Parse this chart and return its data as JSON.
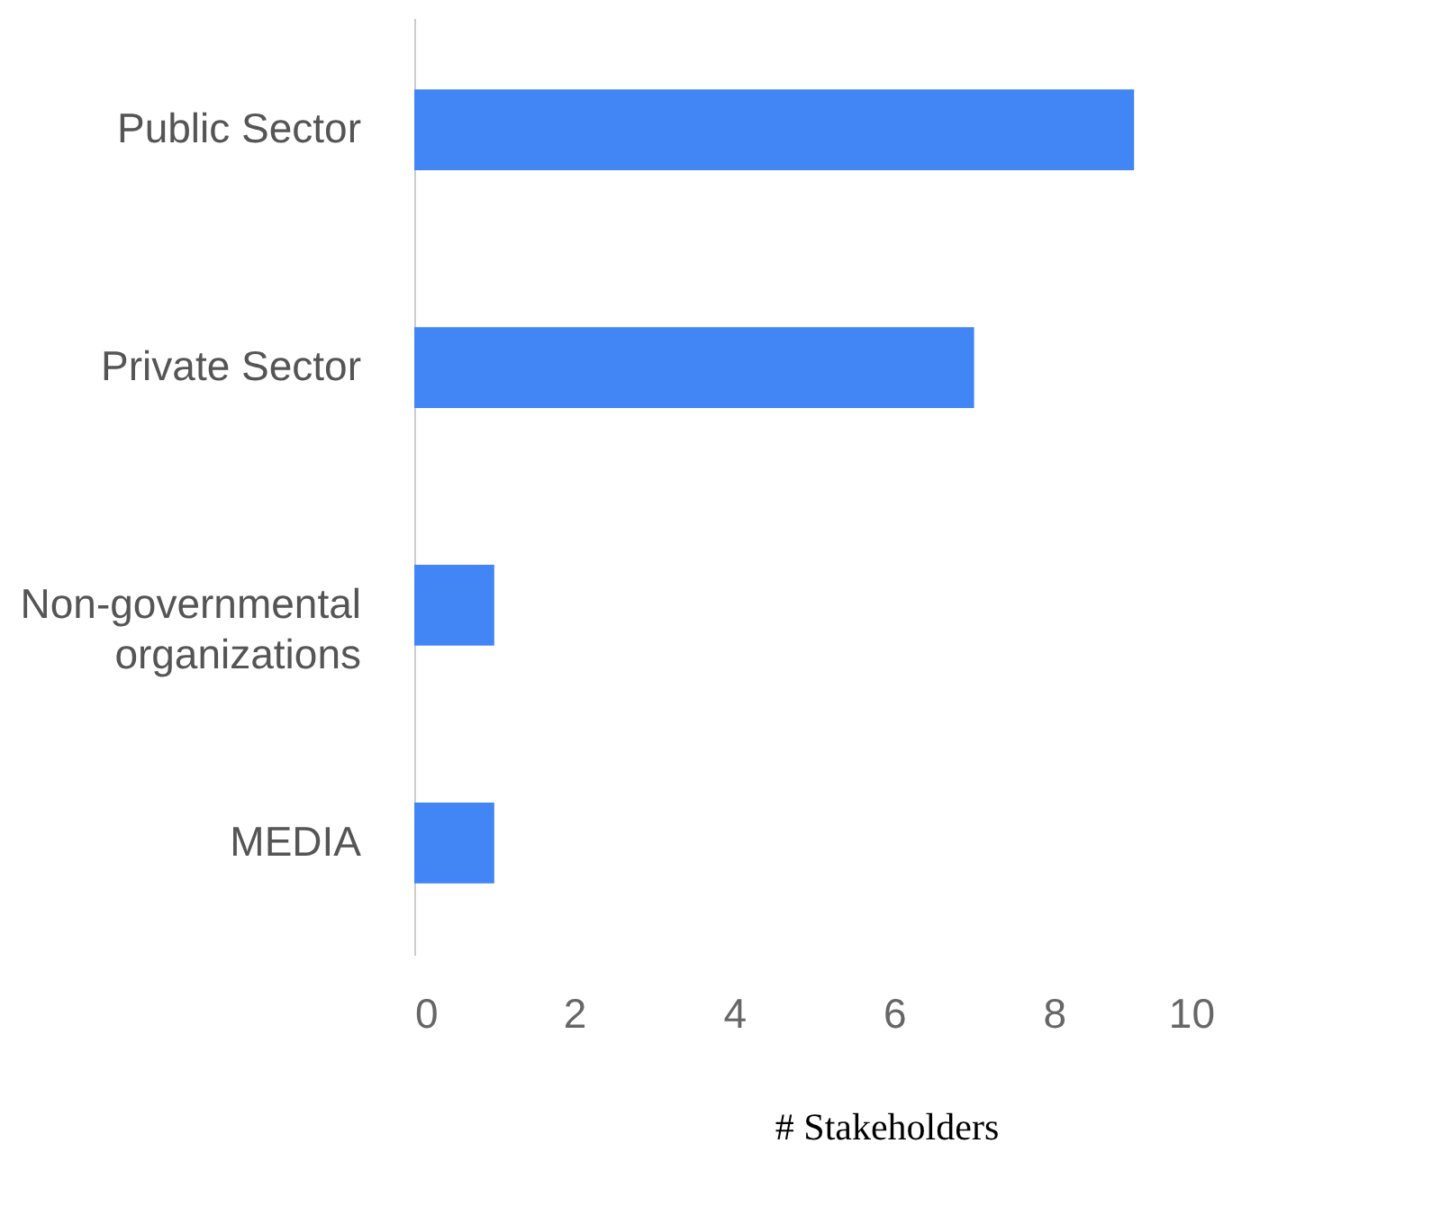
{
  "chart_data": {
    "type": "bar",
    "orientation": "horizontal",
    "xlabel": "# Stakeholders",
    "categories": [
      "Public Sector",
      "Private Sector",
      "Non-governmental organizations",
      "MEDIA"
    ],
    "values": [
      9,
      7,
      1,
      1
    ],
    "color": "#4285f4",
    "xlim": [
      0,
      10
    ],
    "xticks": [
      0,
      2,
      4,
      6,
      8,
      10
    ],
    "grid": false
  }
}
